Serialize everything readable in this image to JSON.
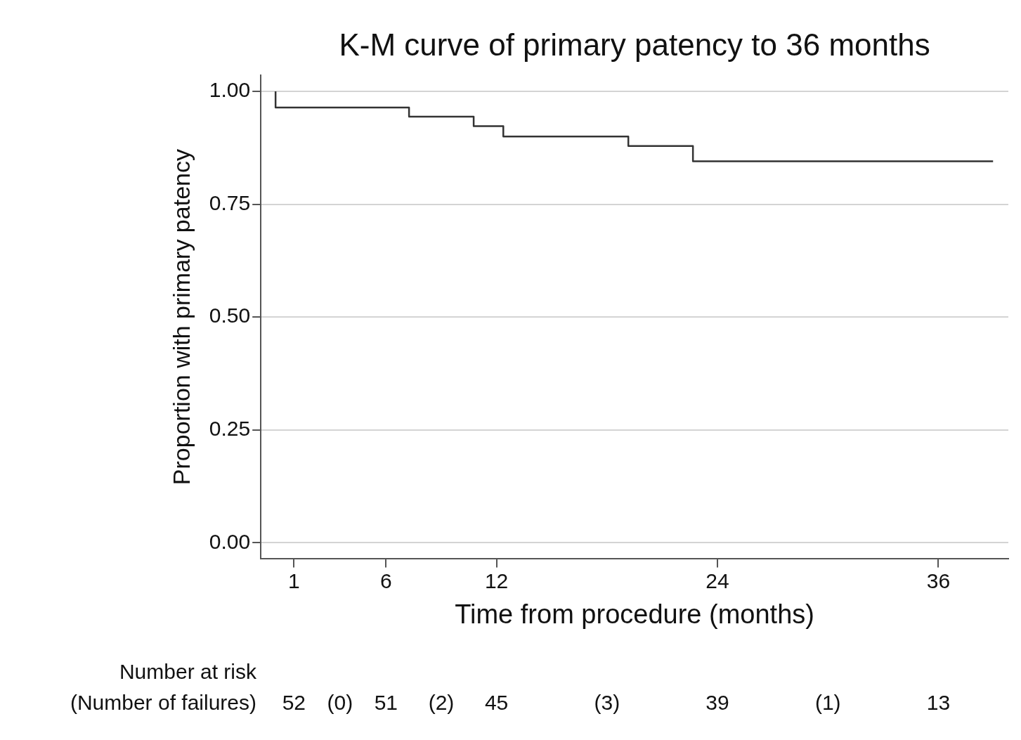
{
  "chart_data": {
    "type": "step",
    "title": "K-M curve of primary patency to 36 months",
    "xlabel": "Time from procedure (months)",
    "ylabel": "Proportion with primary patency",
    "series": [
      {
        "color": "#333333",
        "x": [
          0,
          0,
          7.25,
          10.76,
          12.37,
          19.16,
          22.67,
          26.6,
          38.97
        ],
        "values": [
          1,
          0.983,
          0.964,
          0.944,
          0.923,
          0.9,
          0.879,
          0.845,
          0.845
        ]
      }
    ],
    "xlim": [
      -0.8,
      39.8
    ],
    "xticks": [
      1,
      6,
      12,
      24,
      36
    ],
    "ylim": [
      -0.036,
      1.036
    ],
    "yticks": [
      {
        "value": 0,
        "label": "0.00"
      },
      0.25,
      {
        "value": 0.5,
        "label": "0.50"
      },
      0.75,
      {
        "value": 1,
        "label": "1.00"
      }
    ],
    "grid": "y",
    "legend": false,
    "marker": "none",
    "line_style": "solid",
    "annotations": [
      "Number at risk",
      "(Number of failures)",
      "52",
      "(0)",
      "51",
      "(2)",
      "45",
      "(3)",
      "39",
      "(1)",
      "13"
    ]
  }
}
